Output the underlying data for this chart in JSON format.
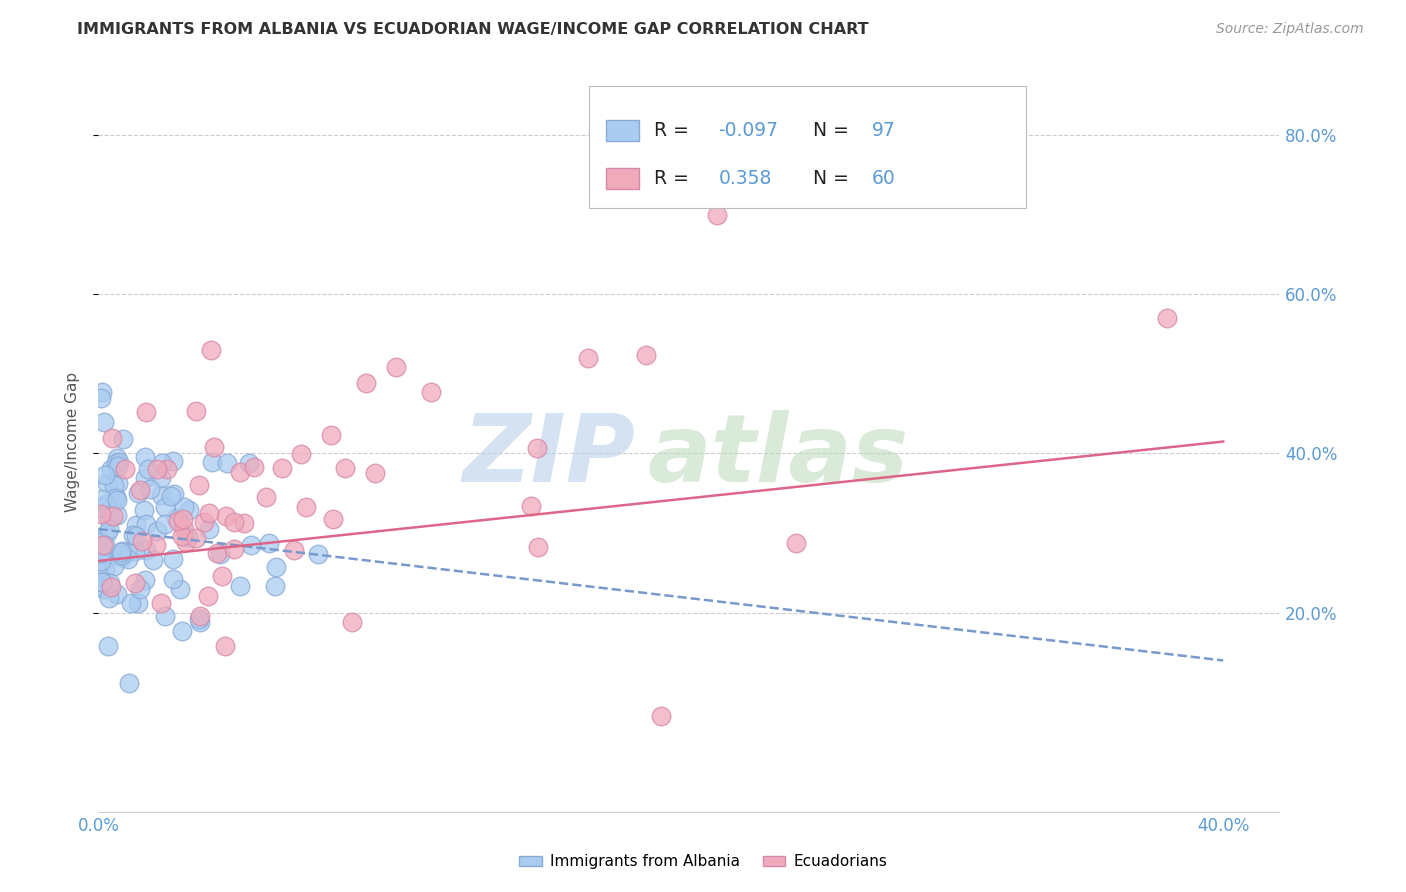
{
  "title": "IMMIGRANTS FROM ALBANIA VS ECUADORIAN WAGE/INCOME GAP CORRELATION CHART",
  "source": "Source: ZipAtlas.com",
  "ylabel": "Wage/Income Gap",
  "albania_color": "#aaccf0",
  "ecuador_color": "#f0aabb",
  "albania_edge": "#88aad8",
  "ecuador_edge": "#d888a8",
  "albania_trend_color": "#7799cc",
  "ecuador_trend_color": "#dd6688",
  "axis_tick_color": "#5b9bd5",
  "grid_color": "#cccccc",
  "title_color": "#333333",
  "source_color": "#999999",
  "ylabel_color": "#555555",
  "background_color": "#ffffff",
  "xlim": [
    0.0,
    0.42
  ],
  "ylim": [
    -0.05,
    0.88
  ],
  "xtick_vals": [
    0.0,
    0.4
  ],
  "ytick_vals": [
    0.2,
    0.4,
    0.6,
    0.8
  ],
  "alb_trend_y0": 0.305,
  "alb_trend_y1": 0.14,
  "ecu_trend_y0": 0.265,
  "ecu_trend_y1": 0.415,
  "watermark_color": "#c0d8f0",
  "watermark_color2": "#c0e0c0"
}
